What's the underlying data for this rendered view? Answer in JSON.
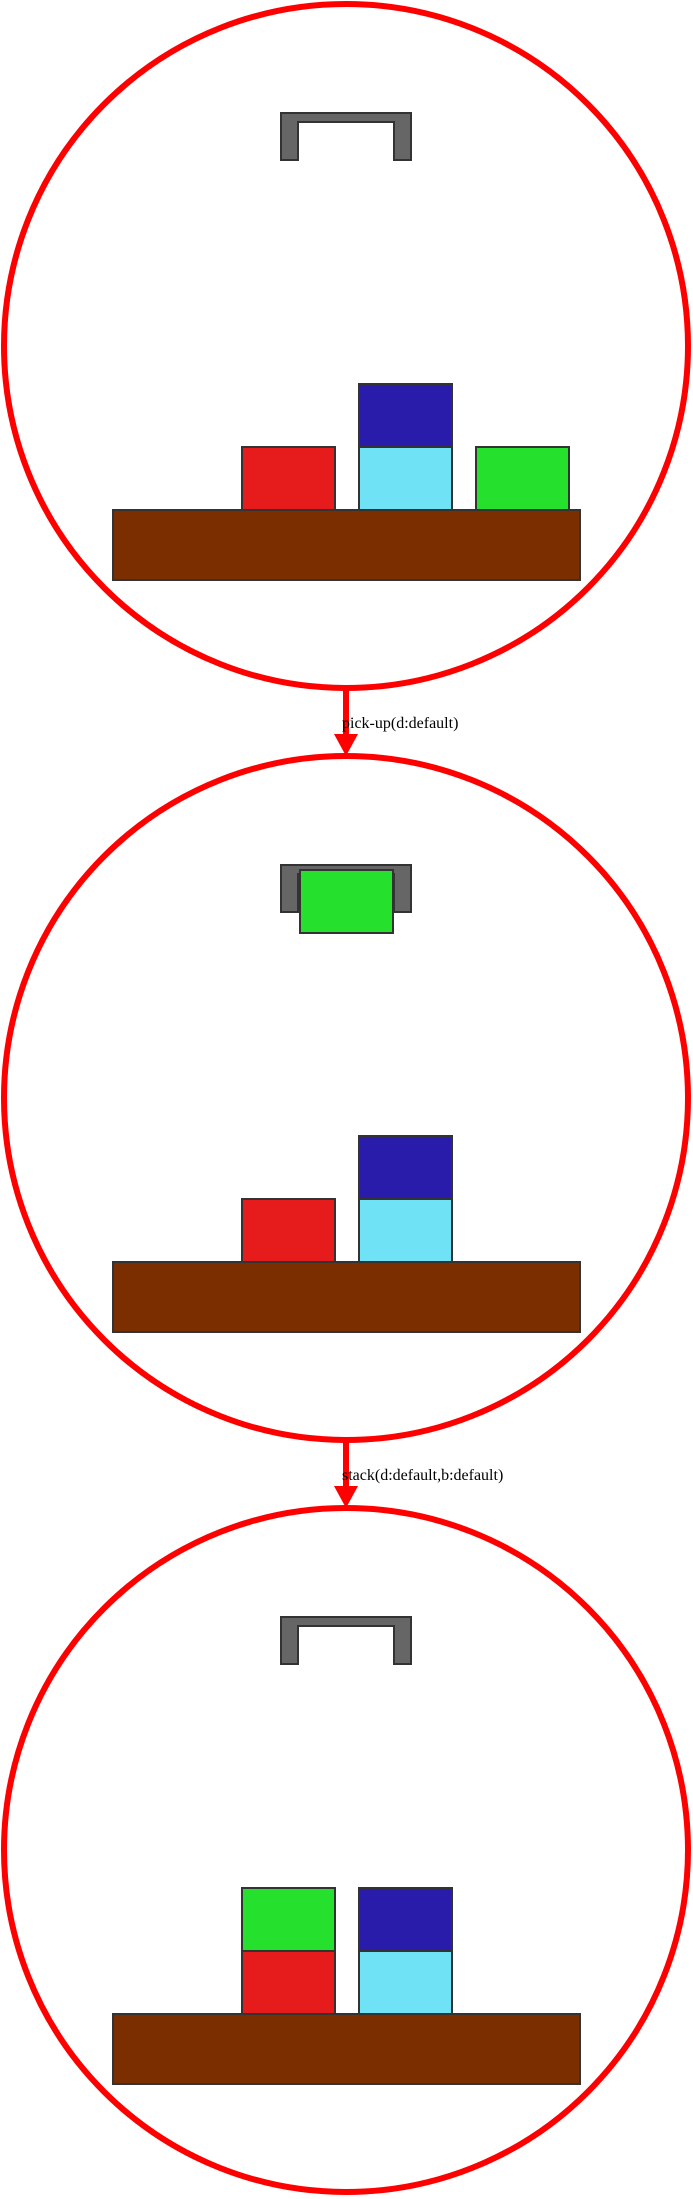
{
  "colors": {
    "border": "#ff0000",
    "table": "#7b2f00",
    "gripper": "#666666",
    "outline": "#333333",
    "red": "#e61c1c",
    "green": "#26e02e",
    "navy": "#2a1cab",
    "cyan": "#70e2f5"
  },
  "states": [
    {
      "gripper_holding": null,
      "stacks": [
        {
          "column": 0,
          "blocks": [
            "red"
          ]
        },
        {
          "column": 1,
          "blocks": [
            "cyan",
            "navy"
          ]
        },
        {
          "column": 2,
          "blocks": [
            "green"
          ]
        }
      ]
    },
    {
      "gripper_holding": "green",
      "stacks": [
        {
          "column": 0,
          "blocks": [
            "red"
          ]
        },
        {
          "column": 1,
          "blocks": [
            "cyan",
            "navy"
          ]
        }
      ]
    },
    {
      "gripper_holding": null,
      "stacks": [
        {
          "column": 0,
          "blocks": [
            "red",
            "green"
          ]
        },
        {
          "column": 1,
          "blocks": [
            "cyan",
            "navy"
          ]
        }
      ]
    }
  ],
  "actions": [
    {
      "label": "pick-up(d:default)"
    },
    {
      "label": "stack(d:default,b:default)"
    }
  ]
}
